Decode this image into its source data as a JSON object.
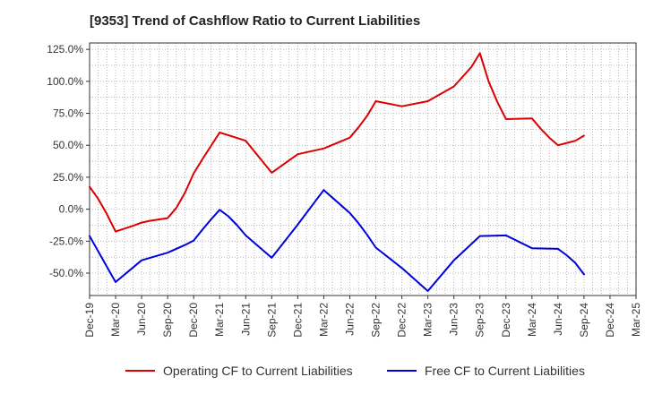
{
  "chart_data": {
    "type": "line",
    "title": "[9353]  Trend of Cashflow Ratio to Current Liabilities",
    "xlabel": "",
    "ylabel": "",
    "ylim": [
      -67.5,
      130
    ],
    "yticks": [
      -50,
      -25,
      0,
      25,
      50,
      75,
      100,
      125
    ],
    "ytick_labels": [
      "-50.0%",
      "-25.0%",
      "0.0%",
      "25.0%",
      "50.0%",
      "75.0%",
      "100.0%",
      "125.0%"
    ],
    "xlim": [
      "Dec-19",
      "Mar-25"
    ],
    "xtick_labels": [
      "Dec-19",
      "Mar-20",
      "Jun-20",
      "Sep-20",
      "Dec-20",
      "Mar-21",
      "Jun-21",
      "Sep-21",
      "Dec-21",
      "Mar-22",
      "Jun-22",
      "Sep-22",
      "Dec-22",
      "Mar-23",
      "Jun-23",
      "Sep-23",
      "Dec-23",
      "Mar-24",
      "Jun-24",
      "Sep-24",
      "Dec-24",
      "Mar-25"
    ],
    "grid": true,
    "legend_position": "bottom",
    "series": [
      {
        "name": "Operating CF to Current Liabilities",
        "color": "#dd0000",
        "points": [
          [
            "Dec-19",
            17.5
          ],
          [
            "Jan-20",
            8
          ],
          [
            "Feb-20",
            -4
          ],
          [
            "Mar-20",
            -17.5
          ],
          [
            "May-20",
            -13
          ],
          [
            "Jun-20",
            -10.5
          ],
          [
            "Jul-20",
            -9
          ],
          [
            "Sep-20",
            -7
          ],
          [
            "Oct-20",
            1
          ],
          [
            "Nov-20",
            13
          ],
          [
            "Dec-20",
            28
          ],
          [
            "Jan-21",
            39
          ],
          [
            "Mar-21",
            60
          ],
          [
            "Jun-21",
            53.5
          ],
          [
            "Sep-21",
            28.5
          ],
          [
            "Dec-21",
            43
          ],
          [
            "Mar-22",
            47.5
          ],
          [
            "Jun-22",
            56
          ],
          [
            "Jul-22",
            64
          ],
          [
            "Aug-22",
            73
          ],
          [
            "Sep-22",
            84.5
          ],
          [
            "Dec-22",
            80.5
          ],
          [
            "Mar-23",
            84.5
          ],
          [
            "Jun-23",
            96
          ],
          [
            "Aug-23",
            111
          ],
          [
            "Sep-23",
            122
          ],
          [
            "Oct-23",
            100
          ],
          [
            "Nov-23",
            84
          ],
          [
            "Dec-23",
            70.5
          ],
          [
            "Mar-24",
            71
          ],
          [
            "Apr-24",
            63
          ],
          [
            "May-24",
            56
          ],
          [
            "Jun-24",
            50
          ],
          [
            "Aug-24",
            53.5
          ],
          [
            "Sep-24",
            57.5
          ]
        ]
      },
      {
        "name": "Free CF to Current Liabilities",
        "color": "#0000dd",
        "points": [
          [
            "Dec-19",
            -21
          ],
          [
            "Mar-20",
            -57
          ],
          [
            "Jun-20",
            -40
          ],
          [
            "Sep-20",
            -34
          ],
          [
            "Nov-20",
            -28
          ],
          [
            "Dec-20",
            -24.5
          ],
          [
            "Jan-21",
            -16
          ],
          [
            "Feb-21",
            -8
          ],
          [
            "Mar-21",
            -0.5
          ],
          [
            "Apr-21",
            -5.5
          ],
          [
            "May-21",
            -12.5
          ],
          [
            "Jun-21",
            -20.5
          ],
          [
            "Sep-21",
            -38
          ],
          [
            "Dec-21",
            -12
          ],
          [
            "Mar-22",
            15
          ],
          [
            "Jun-22",
            -3
          ],
          [
            "Jul-22",
            -11
          ],
          [
            "Aug-22",
            -20
          ],
          [
            "Sep-22",
            -30
          ],
          [
            "Dec-22",
            -46
          ],
          [
            "Mar-23",
            -64
          ],
          [
            "Jun-23",
            -40
          ],
          [
            "Sep-23",
            -21
          ],
          [
            "Dec-23",
            -20.5
          ],
          [
            "Mar-24",
            -30.5
          ],
          [
            "Jun-24",
            -31
          ],
          [
            "Jul-24",
            -36
          ],
          [
            "Aug-24",
            -42
          ],
          [
            "Sep-24",
            -51
          ]
        ]
      }
    ]
  }
}
